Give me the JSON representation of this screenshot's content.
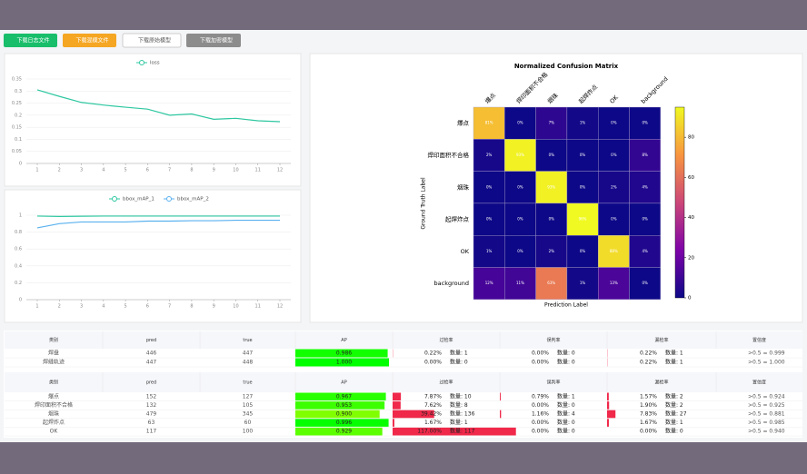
{
  "buttons": [
    "下载日志文件",
    "下载混模文件",
    "下载原始模型",
    "下载加密模型"
  ],
  "chart_data": [
    {
      "type": "line",
      "x": [
        1,
        2,
        3,
        4,
        5,
        6,
        7,
        8,
        9,
        10,
        11,
        12
      ],
      "xlim": [
        1,
        12
      ],
      "xticks": [
        1,
        2,
        3,
        4,
        5,
        6,
        7,
        8,
        9,
        10,
        11,
        12
      ],
      "ylim": [
        0,
        0.35
      ],
      "yticks": [
        0,
        0.05,
        0.1,
        0.15,
        0.2,
        0.25,
        0.3,
        0.35
      ],
      "grid": true,
      "series": [
        {
          "name": "loss",
          "color": "#2ec7a0",
          "values": [
            0.305,
            0.278,
            0.253,
            0.242,
            0.233,
            0.225,
            0.2,
            0.205,
            0.183,
            0.187,
            0.177,
            0.173
          ]
        }
      ]
    },
    {
      "type": "line",
      "x": [
        1,
        2,
        3,
        4,
        5,
        6,
        7,
        8,
        9,
        10,
        11,
        12
      ],
      "xlim": [
        1,
        12
      ],
      "xticks": [
        1,
        2,
        3,
        4,
        5,
        6,
        7,
        8,
        9,
        10,
        11,
        12
      ],
      "ylim": [
        0,
        1
      ],
      "yticks": [
        0,
        0.2,
        0.4,
        0.6,
        0.8,
        1
      ],
      "grid": true,
      "series": [
        {
          "name": "bbox_mAP_1",
          "color": "#2ec7a0",
          "values": [
            0.99,
            0.985,
            0.988,
            0.99,
            0.99,
            0.99,
            0.99,
            0.99,
            0.99,
            0.99,
            0.99,
            0.99
          ]
        },
        {
          "name": "bbox_mAP_2",
          "color": "#5ab1ef",
          "values": [
            0.85,
            0.9,
            0.92,
            0.92,
            0.92,
            0.93,
            0.93,
            0.935,
            0.935,
            0.94,
            0.94,
            0.94
          ]
        }
      ]
    },
    {
      "type": "heatmap",
      "title": "Normalized Confusion Matrix",
      "xlabel": "Prediction Label",
      "ylabel": "Ground Truth Label",
      "x_categories": [
        "爆点",
        "焊印面积不合格",
        "烟珠",
        "起焊炸点",
        "OK",
        "background"
      ],
      "y_categories": [
        "爆点",
        "焊印面积不合格",
        "烟珠",
        "起焊炸点",
        "OK",
        "background"
      ],
      "values": [
        [
          81,
          0,
          7,
          1,
          0,
          0
        ],
        [
          2,
          93,
          0,
          0,
          0,
          8
        ],
        [
          0,
          0,
          93,
          0,
          2,
          4
        ],
        [
          0,
          0,
          0,
          96,
          0,
          0
        ],
        [
          1,
          0,
          2,
          0,
          88,
          4
        ],
        [
          12,
          11,
          63,
          1,
          13,
          0
        ]
      ],
      "value_labels": [
        [
          "81%",
          "0%",
          "7%",
          "1%",
          "0%",
          "0%"
        ],
        [
          "2%",
          "93%",
          "0%",
          "0%",
          "0%",
          "8%"
        ],
        [
          "0%",
          "0%",
          "93%",
          "0%",
          "2%",
          "4%"
        ],
        [
          "0%",
          "0%",
          "0%",
          "96%",
          "0%",
          "0%"
        ],
        [
          "1%",
          "0%",
          "2%",
          "0%",
          "88%",
          "4%"
        ],
        [
          "12%",
          "11%",
          "63%",
          "1%",
          "13%",
          "0%"
        ]
      ],
      "colormap": "plasma",
      "clim": [
        0,
        95
      ],
      "cticks": [
        0,
        20,
        40,
        60,
        80
      ]
    }
  ],
  "tables": [
    {
      "columns": [
        "类别",
        "pred",
        "true",
        "AP",
        "过检率",
        "误判率",
        "漏检率",
        "置信度"
      ],
      "rows": [
        [
          "焊盘",
          "446",
          "447",
          "0.986",
          [
            "0.22%",
            "数量: 1"
          ],
          [
            "0.00%",
            "数量: 0"
          ],
          [
            "0.22%",
            "数量: 1"
          ],
          ">0.5 = 0.999"
        ],
        [
          "焊缝轨迹",
          "447",
          "448",
          "1.000",
          [
            "0.00%",
            "数量: 0"
          ],
          [
            "0.00%",
            "数量: 0"
          ],
          [
            "0.22%",
            "数量: 1"
          ],
          ">0.5 = 1.000"
        ]
      ]
    },
    {
      "columns": [
        "类别",
        "pred",
        "true",
        "AP",
        "过检率",
        "误判率",
        "漏检率",
        "置信度"
      ],
      "rows": [
        [
          "爆点",
          "152",
          "127",
          "0.967",
          [
            "7.87%",
            "数量: 10"
          ],
          [
            "0.79%",
            "数量: 1"
          ],
          [
            "1.57%",
            "数量: 2"
          ],
          ">0.5 = 0.924"
        ],
        [
          "焊印面积不合格",
          "132",
          "105",
          "0.953",
          [
            "7.62%",
            "数量: 8"
          ],
          [
            "0.00%",
            "数量: 0"
          ],
          [
            "1.90%",
            "数量: 2"
          ],
          ">0.5 = 0.925"
        ],
        [
          "烟珠",
          "479",
          "345",
          "0.900",
          [
            "39.42%",
            "数量: 136"
          ],
          [
            "1.16%",
            "数量: 4"
          ],
          [
            "7.83%",
            "数量: 27"
          ],
          ">0.5 = 0.881"
        ],
        [
          "起焊炸点",
          "63",
          "60",
          "0.996",
          [
            "1.67%",
            "数量: 1"
          ],
          [
            "0.00%",
            "数量: 0"
          ],
          [
            "1.67%",
            "数量: 1"
          ],
          ">0.5 = 0.985"
        ],
        [
          "OK",
          "117",
          "100",
          "0.929",
          [
            "117.00%",
            "数量: 117"
          ],
          [
            "0.00%",
            "数量: 0"
          ],
          [
            "0.00%",
            "数量: 0"
          ],
          ">0.5 = 0.940"
        ]
      ]
    }
  ]
}
